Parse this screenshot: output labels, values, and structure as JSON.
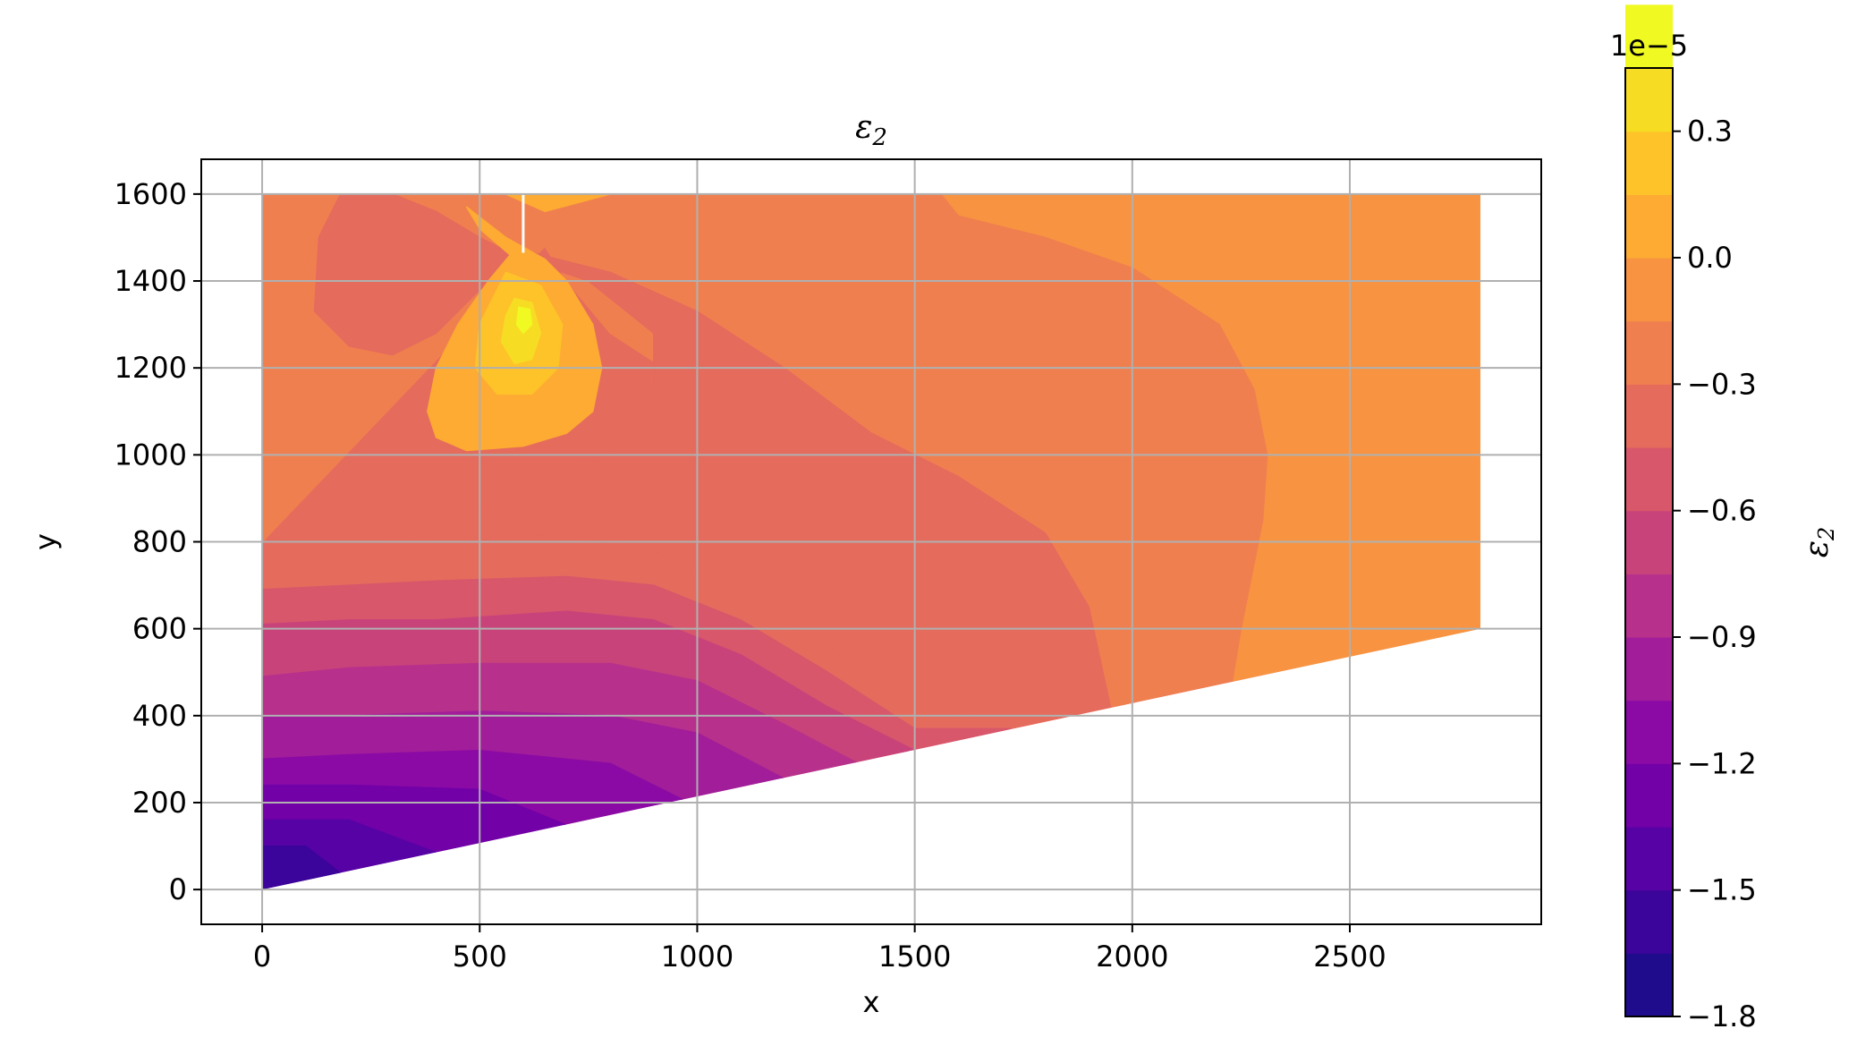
{
  "chart_data": {
    "type": "contour",
    "title": "ε",
    "title_sub": "2",
    "xlabel": "x",
    "ylabel": "y",
    "xlim": [
      -140,
      2940
    ],
    "ylim": [
      -80,
      1680
    ],
    "grid": true,
    "xticks": [
      0,
      500,
      1000,
      1500,
      2000,
      2500
    ],
    "xtick_labels": [
      "0",
      "500",
      "1000",
      "1500",
      "2000",
      "2500"
    ],
    "yticks": [
      0,
      200,
      400,
      600,
      800,
      1000,
      1200,
      1400,
      1600
    ],
    "ytick_labels": [
      "0",
      "200",
      "400",
      "600",
      "800",
      "1000",
      "1200",
      "1400",
      "1600"
    ],
    "domain_polygon": [
      [
        0,
        0
      ],
      [
        2800,
        600
      ],
      [
        2800,
        1600
      ],
      [
        0,
        1600
      ]
    ],
    "colormap": "plasma",
    "levels": [
      -1.8,
      -1.65,
      -1.5,
      -1.35,
      -1.2,
      -1.05,
      -0.9,
      -0.75,
      -0.6,
      -0.45,
      -0.3,
      -0.15,
      0.0,
      0.15,
      0.3,
      0.45
    ],
    "level_colors": [
      "#1f0c8c",
      "#3b049a",
      "#5702a5",
      "#7201a8",
      "#8b0aa5",
      "#a21d9a",
      "#b7308c",
      "#c9437b",
      "#d8576b",
      "#e56b5d",
      "#f07f4f",
      "#f89441",
      "#fdab33",
      "#fec329",
      "#f7dc24",
      "#f0f921"
    ],
    "regions": [
      {
        "level": -0.15,
        "points": [
          [
            1560,
            1600
          ],
          [
            2800,
            1600
          ],
          [
            2800,
            600
          ],
          [
            2230,
            480
          ],
          [
            2250,
            600
          ],
          [
            2300,
            850
          ],
          [
            2310,
            1000
          ],
          [
            2280,
            1150
          ],
          [
            2200,
            1300
          ],
          [
            2000,
            1430
          ],
          [
            1800,
            1500
          ],
          [
            1600,
            1550
          ],
          [
            1560,
            1600
          ]
        ]
      },
      {
        "level": -0.3,
        "points": [
          [
            0,
            1600
          ],
          [
            1560,
            1600
          ],
          [
            1600,
            1550
          ],
          [
            1800,
            1500
          ],
          [
            2000,
            1430
          ],
          [
            2200,
            1300
          ],
          [
            2280,
            1150
          ],
          [
            2310,
            1000
          ],
          [
            2300,
            850
          ],
          [
            2250,
            600
          ],
          [
            2230,
            480
          ],
          [
            1950,
            420
          ],
          [
            1900,
            500
          ],
          [
            1800,
            700
          ],
          [
            1650,
            870
          ],
          [
            1400,
            1000
          ],
          [
            1200,
            1080
          ],
          [
            1000,
            1150
          ],
          [
            800,
            1280
          ],
          [
            700,
            1400
          ],
          [
            650,
            1480
          ],
          [
            0,
            1480
          ]
        ]
      },
      {
        "level": -0.3,
        "points": [
          [
            0,
            1480
          ],
          [
            650,
            1480
          ],
          [
            0,
            800
          ]
        ]
      },
      {
        "level": -0.45,
        "points": [
          [
            0,
            800
          ],
          [
            200,
            850
          ],
          [
            400,
            860
          ],
          [
            600,
            900
          ],
          [
            800,
            1000
          ],
          [
            900,
            1150
          ],
          [
            900,
            1280
          ],
          [
            750,
            1400
          ],
          [
            600,
            1450
          ],
          [
            500,
            1500
          ],
          [
            400,
            1560
          ],
          [
            300,
            1600
          ],
          [
            180,
            1600
          ],
          [
            130,
            1500
          ],
          [
            120,
            1330
          ],
          [
            200,
            1250
          ],
          [
            300,
            1230
          ],
          [
            400,
            1280
          ],
          [
            500,
            1380
          ],
          [
            600,
            1470
          ],
          [
            800,
            1420
          ],
          [
            1000,
            1330
          ],
          [
            1200,
            1200
          ],
          [
            1400,
            1050
          ],
          [
            1600,
            950
          ],
          [
            1800,
            820
          ],
          [
            1900,
            650
          ],
          [
            1950,
            420
          ],
          [
            1720,
            370
          ],
          [
            1500,
            430
          ],
          [
            1300,
            560
          ],
          [
            1100,
            680
          ],
          [
            900,
            780
          ],
          [
            700,
            820
          ],
          [
            400,
            800
          ],
          [
            200,
            790
          ],
          [
            0,
            800
          ]
        ]
      },
      {
        "level": -0.6,
        "points": [
          [
            0,
            690
          ],
          [
            200,
            700
          ],
          [
            400,
            710
          ],
          [
            700,
            720
          ],
          [
            900,
            700
          ],
          [
            1100,
            620
          ],
          [
            1300,
            500
          ],
          [
            1500,
            370
          ],
          [
            1720,
            370
          ],
          [
            1500,
            320
          ],
          [
            1300,
            420
          ],
          [
            1100,
            540
          ],
          [
            900,
            620
          ],
          [
            700,
            640
          ],
          [
            400,
            620
          ],
          [
            200,
            620
          ],
          [
            0,
            610
          ]
        ]
      },
      {
        "level": -0.75,
        "points": [
          [
            0,
            610
          ],
          [
            200,
            620
          ],
          [
            400,
            620
          ],
          [
            700,
            640
          ],
          [
            900,
            620
          ],
          [
            1100,
            540
          ],
          [
            1300,
            420
          ],
          [
            1500,
            320
          ],
          [
            1370,
            290
          ],
          [
            1200,
            380
          ],
          [
            1000,
            480
          ],
          [
            800,
            520
          ],
          [
            500,
            520
          ],
          [
            200,
            510
          ],
          [
            0,
            490
          ]
        ]
      },
      {
        "level": -0.9,
        "points": [
          [
            0,
            490
          ],
          [
            200,
            510
          ],
          [
            500,
            520
          ],
          [
            800,
            520
          ],
          [
            1000,
            480
          ],
          [
            1200,
            380
          ],
          [
            1370,
            290
          ],
          [
            1200,
            255
          ],
          [
            1000,
            360
          ],
          [
            800,
            400
          ],
          [
            500,
            410
          ],
          [
            200,
            400
          ],
          [
            0,
            400
          ]
        ]
      },
      {
        "level": -1.05,
        "points": [
          [
            0,
            400
          ],
          [
            200,
            400
          ],
          [
            500,
            410
          ],
          [
            800,
            400
          ],
          [
            1000,
            360
          ],
          [
            1200,
            255
          ],
          [
            970,
            205
          ],
          [
            800,
            290
          ],
          [
            500,
            320
          ],
          [
            200,
            310
          ],
          [
            0,
            300
          ]
        ]
      },
      {
        "level": -1.2,
        "points": [
          [
            0,
            300
          ],
          [
            200,
            310
          ],
          [
            500,
            320
          ],
          [
            800,
            290
          ],
          [
            970,
            205
          ],
          [
            700,
            148
          ],
          [
            500,
            230
          ],
          [
            200,
            240
          ],
          [
            0,
            240
          ]
        ]
      },
      {
        "level": -1.35,
        "points": [
          [
            0,
            240
          ],
          [
            200,
            240
          ],
          [
            500,
            230
          ],
          [
            700,
            148
          ],
          [
            400,
            85
          ],
          [
            200,
            160
          ],
          [
            0,
            160
          ]
        ]
      },
      {
        "level": -1.5,
        "points": [
          [
            0,
            160
          ],
          [
            200,
            160
          ],
          [
            400,
            85
          ],
          [
            180,
            38
          ],
          [
            100,
            100
          ],
          [
            0,
            100
          ]
        ]
      },
      {
        "level": -1.65,
        "points": [
          [
            0,
            100
          ],
          [
            100,
            100
          ],
          [
            180,
            38
          ],
          [
            0,
            0
          ]
        ]
      },
      {
        "level": 0.0,
        "points": [
          [
            470,
            1570
          ],
          [
            560,
            1500
          ],
          [
            650,
            1450
          ],
          [
            700,
            1400
          ],
          [
            760,
            1300
          ],
          [
            780,
            1200
          ],
          [
            760,
            1100
          ],
          [
            700,
            1050
          ],
          [
            600,
            1020
          ],
          [
            470,
            1010
          ],
          [
            400,
            1040
          ],
          [
            380,
            1100
          ],
          [
            400,
            1200
          ],
          [
            450,
            1300
          ],
          [
            520,
            1400
          ],
          [
            570,
            1460
          ],
          [
            500,
            1520
          ],
          [
            470,
            1570
          ]
        ]
      },
      {
        "level": 0.0,
        "points": [
          [
            470,
            1600
          ],
          [
            560,
            1600
          ],
          [
            650,
            1560
          ],
          [
            800,
            1600
          ],
          [
            600,
            1600
          ]
        ]
      },
      {
        "level": 0.15,
        "points": [
          [
            560,
            1420
          ],
          [
            640,
            1390
          ],
          [
            690,
            1300
          ],
          [
            680,
            1200
          ],
          [
            620,
            1140
          ],
          [
            540,
            1140
          ],
          [
            490,
            1200
          ],
          [
            500,
            1300
          ],
          [
            560,
            1420
          ]
        ]
      },
      {
        "level": 0.3,
        "points": [
          [
            580,
            1360
          ],
          [
            620,
            1350
          ],
          [
            640,
            1280
          ],
          [
            620,
            1220
          ],
          [
            580,
            1210
          ],
          [
            550,
            1260
          ],
          [
            560,
            1320
          ]
        ]
      },
      {
        "level": 0.45,
        "points": [
          [
            590,
            1340
          ],
          [
            615,
            1335
          ],
          [
            620,
            1300
          ],
          [
            600,
            1280
          ],
          [
            585,
            1300
          ]
        ]
      },
      {
        "level": -0.45,
        "points": [
          [
            340,
            1450
          ],
          [
            380,
            1500
          ],
          [
            440,
            1480
          ],
          [
            420,
            1420
          ],
          [
            350,
            1410
          ]
        ]
      }
    ],
    "colorbar": {
      "label": "ε",
      "label_sub": "2",
      "offset_text": "1e−5",
      "ticks": [
        0.3,
        0.0,
        -0.3,
        -0.6,
        -0.9,
        -1.2,
        -1.5,
        -1.8
      ],
      "tick_labels": [
        "0.3",
        "0.0",
        "−0.3",
        "−0.6",
        "−0.9",
        "−1.2",
        "−1.5",
        "−1.8"
      ],
      "range": [
        -1.8,
        0.45
      ]
    }
  }
}
